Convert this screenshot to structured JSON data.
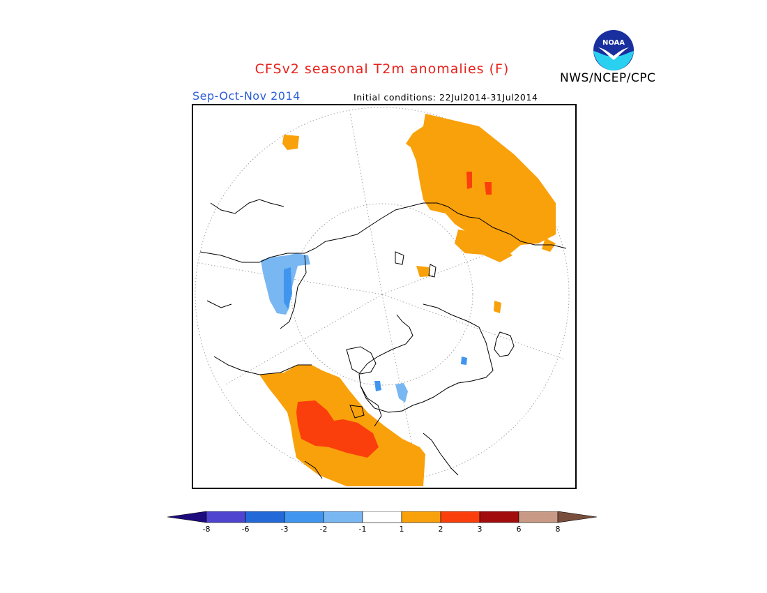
{
  "header": {
    "title": "CFSv2 seasonal T2m anomalies (F)",
    "season": "Sep-Oct-Nov 2014",
    "initial_conditions": "Initial conditions: 22Jul2014-31Jul2014",
    "agency": "NWS/NCEP/CPC",
    "logo_text": "NOAA"
  },
  "colorbar": {
    "labels": [
      "-8",
      "-6",
      "-3",
      "-2",
      "-1",
      "1",
      "2",
      "3",
      "6",
      "8"
    ],
    "colors": [
      "#1e0c7e",
      "#4f44cf",
      "#2369d8",
      "#4096ef",
      "#78b7f2",
      "#ffffff",
      "#f9a10a",
      "#fb3f0c",
      "#a20c0c",
      "#c89a86",
      "#7a4e3c"
    ]
  },
  "map": {
    "projection": "north-polar-stereographic",
    "anomaly_regions": [
      {
        "name": "north-america-west",
        "level": "1 to 2 F"
      },
      {
        "name": "north-america-core",
        "level": "2 to 3 F"
      },
      {
        "name": "eastern-europe-west-asia",
        "level": "1 to 2 F"
      },
      {
        "name": "northeast-siberia",
        "level": "-2 to -1 F"
      },
      {
        "name": "canadian-archipelago",
        "level": "-2 to -1 F"
      }
    ]
  }
}
